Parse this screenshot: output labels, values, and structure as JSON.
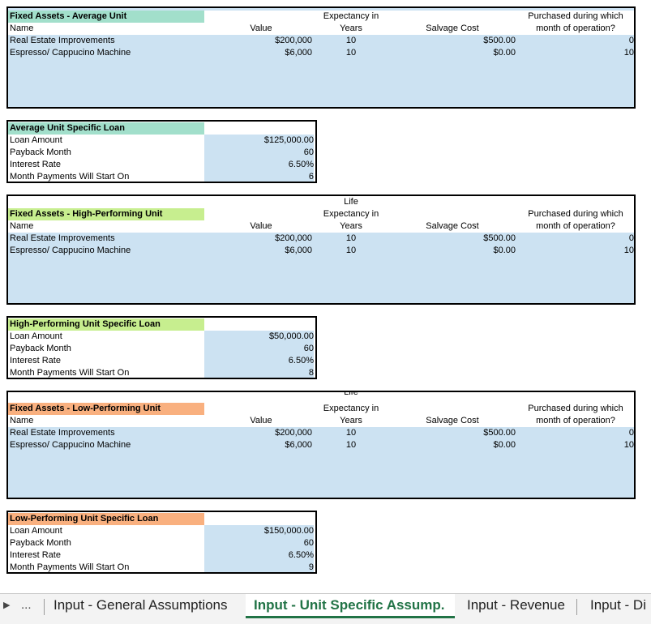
{
  "colors": {
    "average": "#a2dfcb",
    "high": "#c7ee8f",
    "low": "#f9b07f",
    "input_fill": "#cce2f2",
    "active_tab": "#217346"
  },
  "fixed_headers": {
    "life_top": "Life",
    "expectancy": "Expectancy in",
    "years": "Years",
    "name": "Name",
    "value": "Value",
    "salvage": "Salvage Cost",
    "purchased_1": "Purchased during which",
    "purchased_2": "month of operation?"
  },
  "loan_labels": [
    "Loan Amount",
    "Payback Month",
    "Interest Rate",
    "Month Payments Will Start On"
  ],
  "sections": [
    {
      "fixed_title": "Fixed Assets - Average Unit",
      "assets": [
        {
          "name": "Real Estate Improvements",
          "value": "$200,000",
          "life": "10",
          "salvage": "$500.00",
          "month": "0"
        },
        {
          "name": "Espresso/ Cappucino Machine",
          "value": "$6,000",
          "life": "10",
          "salvage": "$0.00",
          "month": "10"
        }
      ],
      "loan_title": "Average Unit Specific Loan",
      "loan": {
        "amount": "$125,000.00",
        "payback": "60",
        "rate": "6.50%",
        "start": "6"
      }
    },
    {
      "fixed_title": "Fixed Assets - High-Performing Unit",
      "assets": [
        {
          "name": "Real Estate Improvements",
          "value": "$200,000",
          "life": "10",
          "salvage": "$500.00",
          "month": "0"
        },
        {
          "name": "Espresso/ Cappucino Machine",
          "value": "$6,000",
          "life": "10",
          "salvage": "$0.00",
          "month": "10"
        }
      ],
      "loan_title": "High-Performing Unit Specific Loan",
      "loan": {
        "amount": "$50,000.00",
        "payback": "60",
        "rate": "6.50%",
        "start": "8"
      }
    },
    {
      "fixed_title": "Fixed Assets - Low-Performing Unit",
      "assets": [
        {
          "name": "Real Estate Improvements",
          "value": "$200,000",
          "life": "10",
          "salvage": "$500.00",
          "month": "0"
        },
        {
          "name": "Espresso/ Cappucino Machine",
          "value": "$6,000",
          "life": "10",
          "salvage": "$0.00",
          "month": "10"
        }
      ],
      "loan_title": "Low-Performing Unit Specific Loan",
      "loan": {
        "amount": "$150,000.00",
        "payback": "60",
        "rate": "6.50%",
        "start": "9"
      }
    }
  ],
  "tabs": {
    "ellipsis": "...",
    "items": [
      "Input - General Assumptions",
      "Input - Unit Specific Assump.",
      "Input - Revenue",
      "Input - Di"
    ]
  }
}
